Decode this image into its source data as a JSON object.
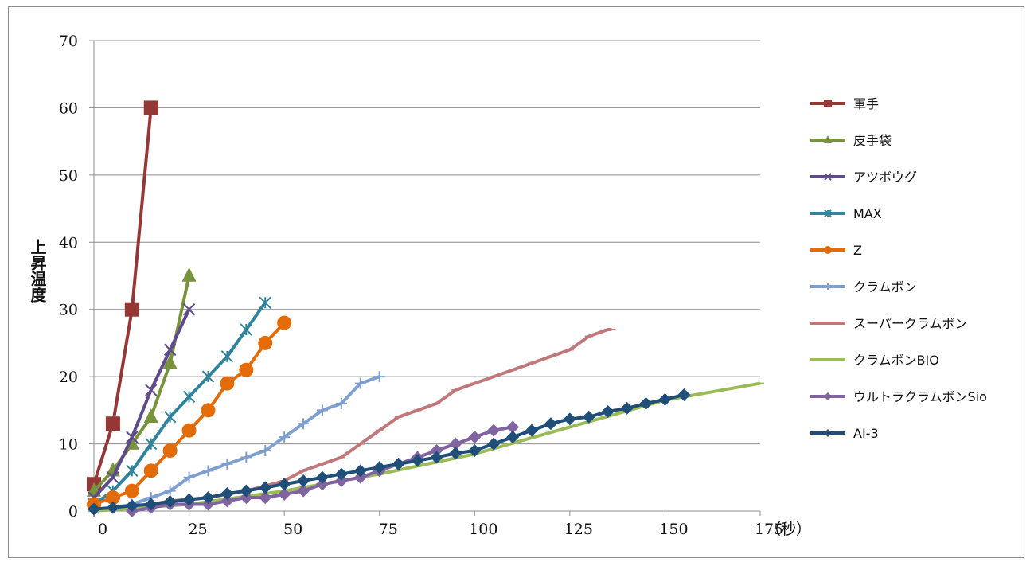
{
  "chart_data": {
    "type": "line",
    "title": "",
    "xlabel": "（秒）",
    "ylabel": "上昇温度",
    "xlim": [
      0,
      175
    ],
    "ylim": [
      0,
      70
    ],
    "x_ticks": [
      0,
      25,
      50,
      75,
      100,
      125,
      150,
      175
    ],
    "y_ticks": [
      0,
      10,
      20,
      30,
      40,
      50,
      60,
      70
    ],
    "grid": "horizontal",
    "legend_position": "right",
    "series": [
      {
        "name": "軍手",
        "color": "#953735",
        "marker": "square",
        "x": [
          0,
          5,
          10,
          15
        ],
        "y": [
          4,
          13,
          30,
          60
        ]
      },
      {
        "name": "皮手袋",
        "color": "#77933c",
        "marker": "triangle",
        "x": [
          0,
          5,
          10,
          15,
          20,
          25
        ],
        "y": [
          3,
          6,
          10,
          14,
          22,
          35
        ]
      },
      {
        "name": "アツボウグ",
        "color": "#5f4a8b",
        "marker": "x",
        "x": [
          0,
          5,
          10,
          15,
          20,
          25
        ],
        "y": [
          2,
          5,
          11,
          18,
          24,
          30
        ]
      },
      {
        "name": "MAX",
        "color": "#31849b",
        "marker": "star",
        "x": [
          0,
          5,
          10,
          15,
          20,
          25,
          30,
          35,
          40,
          45
        ],
        "y": [
          1,
          3,
          6,
          10,
          14,
          17,
          20,
          23,
          27,
          31
        ]
      },
      {
        "name": "Z",
        "color": "#e36c09",
        "marker": "circle",
        "x": [
          0,
          5,
          10,
          15,
          20,
          25,
          30,
          35,
          40,
          45,
          50
        ],
        "y": [
          1,
          2,
          3,
          6,
          9,
          12,
          15,
          19,
          21,
          25,
          28
        ]
      },
      {
        "name": "クラムボン",
        "color": "#7f9fcf",
        "marker": "plus",
        "x": [
          0,
          5,
          10,
          15,
          20,
          25,
          30,
          35,
          40,
          45,
          50,
          55,
          60,
          65,
          70,
          75
        ],
        "y": [
          0,
          0.5,
          1,
          2,
          3,
          5,
          6,
          7,
          8,
          9,
          11,
          13,
          15,
          16,
          19,
          20
        ]
      },
      {
        "name": "スーパークラムボン",
        "color": "#c0787a",
        "marker": "dash",
        "x": [
          0,
          10,
          20,
          30,
          40,
          50,
          55,
          60,
          65,
          70,
          75,
          80,
          85,
          90,
          95,
          100,
          105,
          110,
          115,
          120,
          125,
          130,
          135,
          136
        ],
        "y": [
          0,
          0.5,
          1.5,
          2,
          3,
          4.5,
          6,
          7,
          8,
          10,
          12,
          14,
          15,
          16,
          18,
          19,
          20,
          21,
          22,
          23,
          24,
          26,
          27,
          27
        ]
      },
      {
        "name": "クラムボンBIO",
        "color": "#9bbb59",
        "marker": "dash",
        "x": [
          0,
          25,
          50,
          75,
          100,
          125,
          150,
          175
        ],
        "y": [
          0,
          1,
          3,
          5.5,
          8.5,
          12.5,
          16.5,
          19
        ]
      },
      {
        "name": "ウルトラクラムボンSio",
        "color": "#8064a2",
        "marker": "diamond",
        "x": [
          10,
          15,
          20,
          25,
          30,
          35,
          40,
          45,
          50,
          55,
          60,
          65,
          70,
          75,
          80,
          85,
          90,
          95,
          100,
          105,
          110
        ],
        "y": [
          0,
          0.5,
          1,
          1,
          1,
          1.5,
          2,
          2,
          2.5,
          3,
          4,
          4.5,
          5,
          6,
          7,
          8,
          9,
          10,
          11,
          12,
          12.5
        ]
      },
      {
        "name": "AI-3",
        "color": "#1f4e79",
        "marker": "diamond",
        "x": [
          0,
          5,
          10,
          15,
          20,
          25,
          30,
          35,
          40,
          45,
          50,
          55,
          60,
          65,
          70,
          75,
          80,
          85,
          90,
          95,
          100,
          105,
          110,
          115,
          120,
          125,
          130,
          135,
          140,
          145,
          150,
          155
        ],
        "y": [
          0.3,
          0.5,
          0.8,
          1,
          1.4,
          1.7,
          2,
          2.6,
          3,
          3.5,
          4,
          4.5,
          5,
          5.5,
          6,
          6.5,
          7,
          7.5,
          8,
          8.6,
          9,
          10,
          11,
          12,
          13,
          13.7,
          14,
          14.8,
          15.3,
          16,
          16.6,
          17.3
        ]
      }
    ]
  }
}
